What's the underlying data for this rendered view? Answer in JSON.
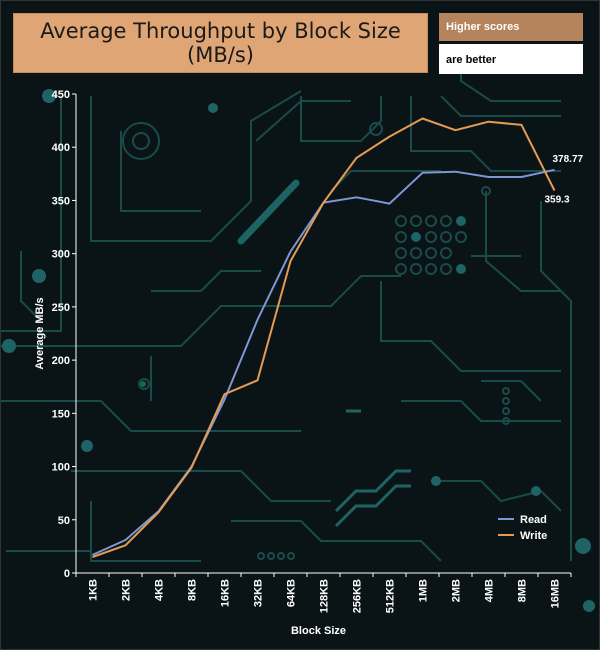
{
  "title_lines": [
    "Average Throughput by Block Size",
    "(MB/s)"
  ],
  "notes": {
    "line1": "Higher scores",
    "line2": "are better"
  },
  "colors": {
    "read": "#7f96d4",
    "write": "#e49b55",
    "title_bg": "#e0a574",
    "note_bg": "#b5835c",
    "circuit": "#1b4a4a"
  },
  "chart_data": {
    "type": "line",
    "title": "Average Throughput by Block Size (MB/s)",
    "xlabel": "Block Size",
    "ylabel": "Average MB/s",
    "ylim": [
      0,
      450
    ],
    "yticks": [
      0,
      50,
      100,
      150,
      200,
      250,
      300,
      350,
      400,
      450
    ],
    "categories": [
      "1KB",
      "2KB",
      "4KB",
      "8KB",
      "16KB",
      "32KB",
      "64KB",
      "128KB",
      "256KB",
      "512KB",
      "1MB",
      "2MB",
      "4MB",
      "8MB",
      "16MB"
    ],
    "series": [
      {
        "name": "Read",
        "values": [
          17,
          31,
          58,
          100,
          163,
          238,
          302,
          348,
          353,
          347,
          376,
          377,
          372,
          372,
          378.77
        ]
      },
      {
        "name": "Write",
        "values": [
          15,
          26,
          57,
          99,
          168,
          181,
          293,
          348,
          390,
          410,
          427,
          416,
          424,
          421,
          359.3
        ]
      }
    ],
    "end_labels": [
      "378.77",
      "359.3"
    ],
    "legend_position": "bottom-right",
    "grid": false
  }
}
